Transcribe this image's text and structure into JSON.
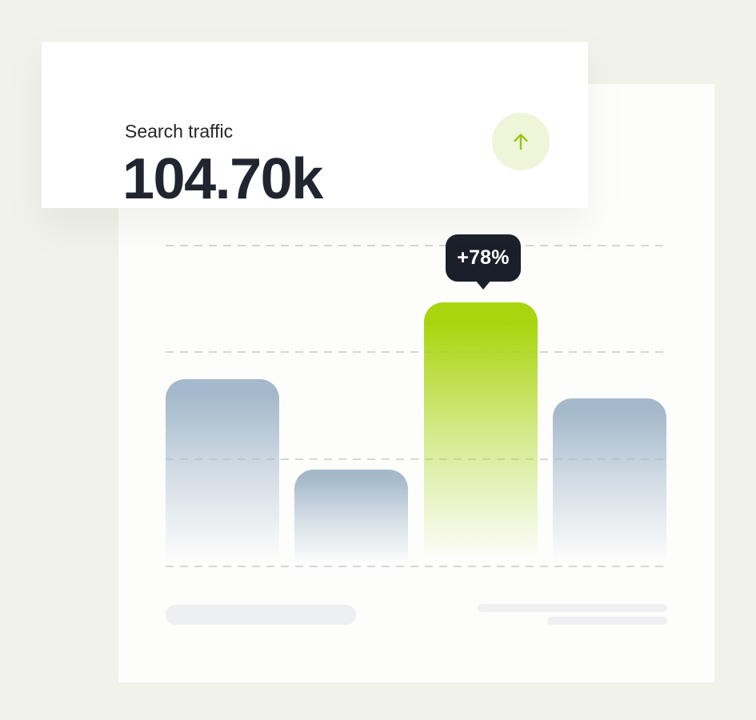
{
  "page": {
    "background_color": "#f1f2ea"
  },
  "stat_card": {
    "label": "Search traffic",
    "value": "104.70k",
    "trend_badge": {
      "icon": "arrow-up-icon",
      "direction": "up",
      "bg_color": "#eef5d8",
      "arrow_color": "#96c41a"
    }
  },
  "chart_data": {
    "type": "bar",
    "title": "",
    "xlabel": "",
    "ylabel": "",
    "categories": [
      "",
      "",
      "",
      ""
    ],
    "values": [
      58,
      30,
      82,
      52
    ],
    "value_unit": "percent of plot height (no numeric axis shown)",
    "ylim": [
      0,
      100
    ],
    "highlight_index": 2,
    "annotation": {
      "label": "+78%",
      "bar_index": 2
    },
    "gridlines": {
      "style": "dashed",
      "count": 4,
      "orientation": "horizontal"
    },
    "legend": "skeleton placeholders (one pill left, two lines right), no text",
    "colors": {
      "bar": "#a4b9cb",
      "bar_highlight": "#a8d50e",
      "tooltip_bg": "#1a1f29",
      "tooltip_text": "#ffffff",
      "gridline": "#d5d7d8",
      "skeleton": "#edeff1"
    }
  }
}
